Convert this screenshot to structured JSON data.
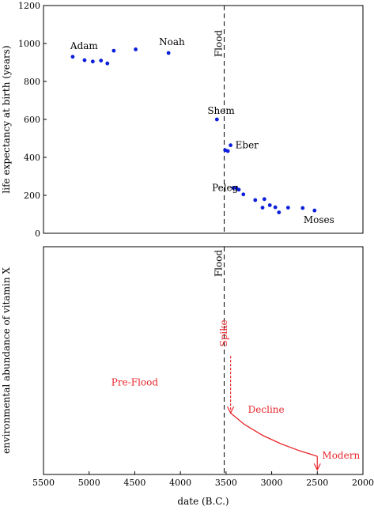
{
  "chart_data": [
    {
      "type": "scatter",
      "title": "",
      "xlabel": "date (B.C.)",
      "ylabel": "life expectancy at birth (years)",
      "xlim": [
        5500,
        2000
      ],
      "xreversed": true,
      "ylim": [
        0,
        1200
      ],
      "yticks": [
        0,
        200,
        400,
        600,
        800,
        1000,
        1200
      ],
      "xticks": [
        5500,
        5000,
        4500,
        4000,
        3500,
        3000,
        2500,
        2000
      ],
      "grid": false,
      "point_color": "#0b1fdc",
      "vline": {
        "x": 3520,
        "label": "Flood"
      },
      "points": [
        {
          "x": 5180,
          "y": 930
        },
        {
          "x": 5050,
          "y": 912
        },
        {
          "x": 4960,
          "y": 905
        },
        {
          "x": 4870,
          "y": 910
        },
        {
          "x": 4800,
          "y": 895
        },
        {
          "x": 4730,
          "y": 962
        },
        {
          "x": 4490,
          "y": 969
        },
        {
          "x": 4130,
          "y": 950
        },
        {
          "x": 3600,
          "y": 600
        },
        {
          "x": 3510,
          "y": 438
        },
        {
          "x": 3480,
          "y": 433
        },
        {
          "x": 3450,
          "y": 464
        },
        {
          "x": 3420,
          "y": 239
        },
        {
          "x": 3390,
          "y": 239
        },
        {
          "x": 3360,
          "y": 230
        },
        {
          "x": 3310,
          "y": 205
        },
        {
          "x": 3180,
          "y": 175
        },
        {
          "x": 3100,
          "y": 135
        },
        {
          "x": 3080,
          "y": 180
        },
        {
          "x": 3020,
          "y": 148
        },
        {
          "x": 2960,
          "y": 137
        },
        {
          "x": 2920,
          "y": 110
        },
        {
          "x": 2820,
          "y": 135
        },
        {
          "x": 2660,
          "y": 133
        },
        {
          "x": 2530,
          "y": 120
        }
      ],
      "annotations": [
        {
          "text": "Adam",
          "x": 5180,
          "y": 930
        },
        {
          "text": "Noah",
          "x": 4130,
          "y": 950
        },
        {
          "text": "Shem",
          "x": 3600,
          "y": 600
        },
        {
          "text": "Eber",
          "x": 3450,
          "y": 464
        },
        {
          "text": "Peleg",
          "x": 3420,
          "y": 239
        },
        {
          "text": "Moses",
          "x": 2530,
          "y": 120
        }
      ]
    },
    {
      "type": "line",
      "title": "",
      "xlabel": "date (B.C.)",
      "ylabel": "environmental abundance of vitamin X",
      "xlim": [
        5500,
        2000
      ],
      "xreversed": true,
      "ylim": [
        0,
        1
      ],
      "yticks": [],
      "grid": false,
      "line_color": "#e8262b",
      "vline": {
        "x": 3520,
        "label": "Flood"
      },
      "series": [
        {
          "x": [
            3450,
            3300,
            3100,
            2900,
            2700,
            2500
          ],
          "y": [
            0.27,
            0.22,
            0.172,
            0.135,
            0.105,
            0.08
          ]
        }
      ],
      "arrows": [
        {
          "x": 3450,
          "y_from": 0.52,
          "y_to": 0.27
        },
        {
          "x": 2500,
          "y_from": 0.08,
          "y_to": 0.02
        }
      ],
      "labels": [
        {
          "text": "Spike",
          "x": 3490,
          "y": 0.62,
          "rotate": -90
        },
        {
          "text": "Pre-Flood",
          "x": 4500,
          "y": 0.39
        },
        {
          "text": "Decline",
          "x": 3060,
          "y": 0.27
        },
        {
          "text": "Modern",
          "x": 2240,
          "y": 0.07
        }
      ]
    }
  ]
}
